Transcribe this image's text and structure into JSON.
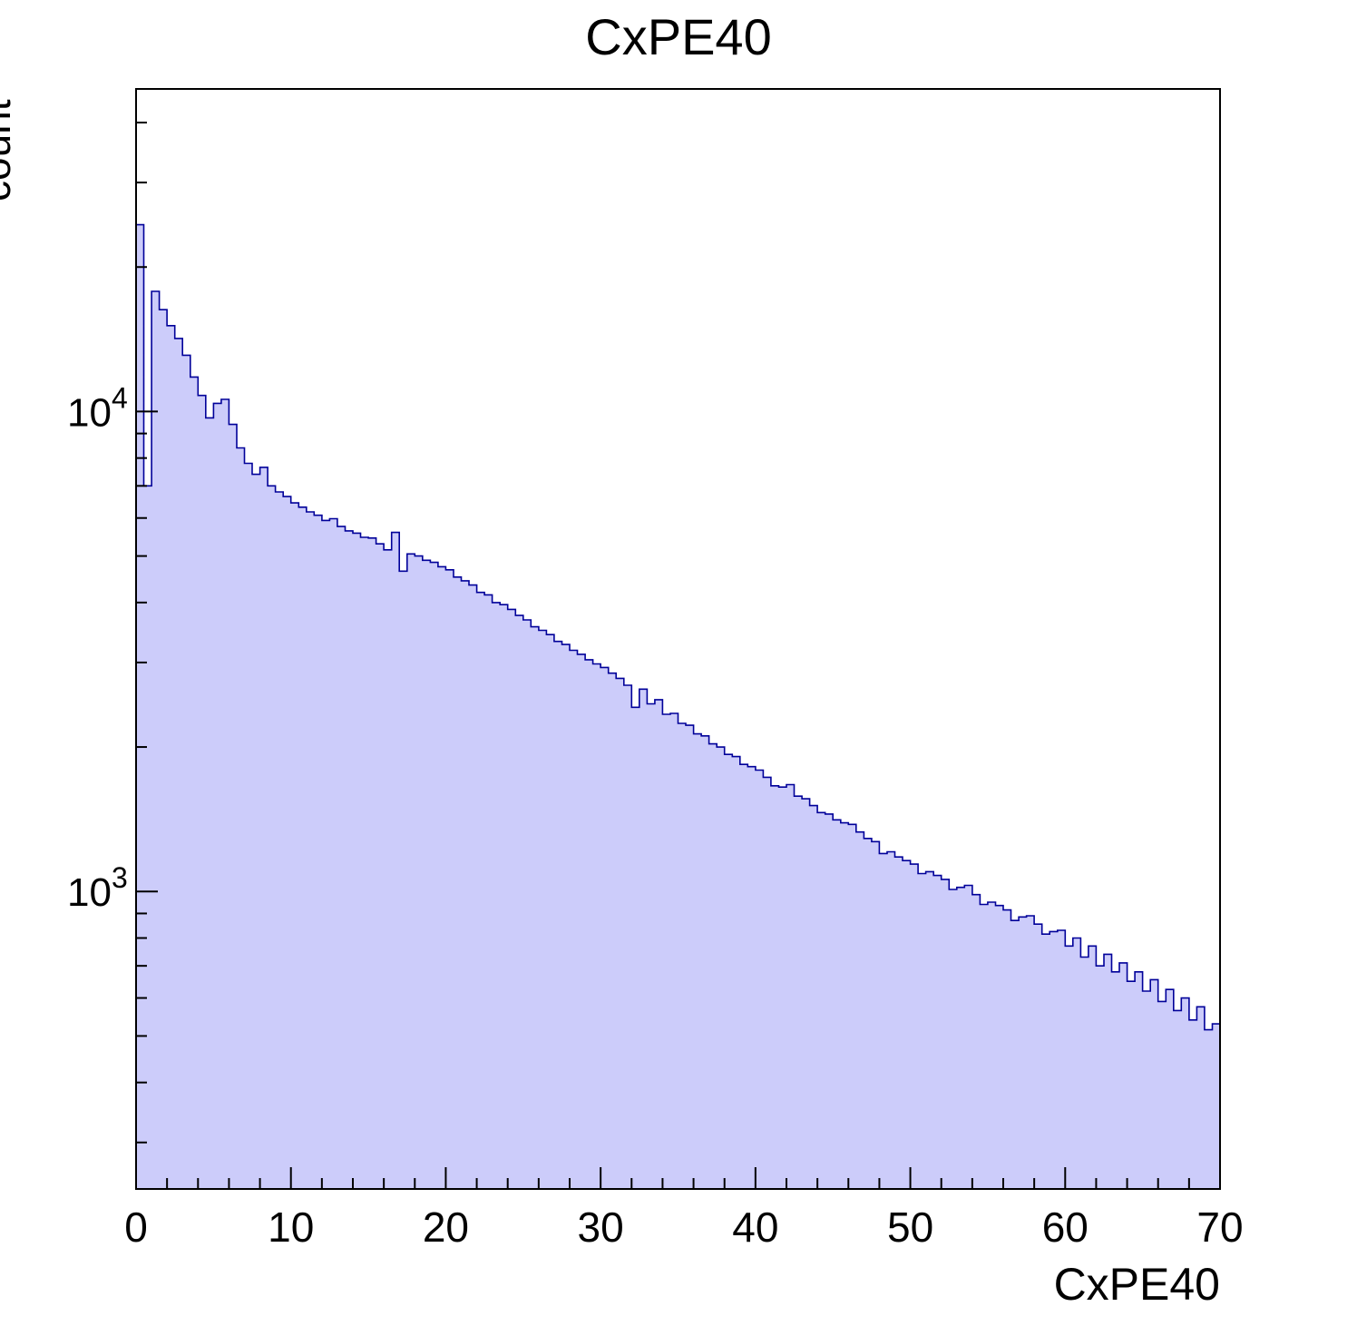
{
  "chart_data": {
    "type": "bar",
    "subtype": "histogram",
    "title": "CxPE40",
    "xlabel": "CxPE40",
    "ylabel": "count",
    "yscale": "log",
    "grid": false,
    "legend": "none",
    "xlim": [
      0,
      70
    ],
    "ylim": [
      240,
      47000
    ],
    "x_start": 0,
    "bin_width": 0.5,
    "xticks": [
      0,
      10,
      20,
      30,
      40,
      50,
      60,
      70
    ],
    "x_minor_step": 2,
    "ytick_exponents": [
      3,
      4
    ],
    "ytick_labels": [
      "10^3",
      "10^4"
    ],
    "fill_color": "#ccccfa",
    "line_color": "#000099",
    "frame_color": "#000000",
    "values": [
      24500,
      7000,
      17800,
      16300,
      15100,
      14200,
      13100,
      11800,
      10800,
      9700,
      10400,
      10600,
      9400,
      8400,
      7800,
      7400,
      7650,
      7000,
      6800,
      6650,
      6450,
      6320,
      6180,
      6080,
      5930,
      5980,
      5760,
      5640,
      5580,
      5470,
      5450,
      5300,
      5150,
      5600,
      4650,
      5050,
      5000,
      4900,
      4850,
      4750,
      4680,
      4520,
      4440,
      4350,
      4200,
      4150,
      4000,
      3960,
      3870,
      3760,
      3680,
      3560,
      3500,
      3430,
      3320,
      3270,
      3180,
      3120,
      3040,
      2980,
      2930,
      2850,
      2780,
      2690,
      2420,
      2640,
      2460,
      2510,
      2340,
      2350,
      2240,
      2220,
      2130,
      2110,
      2030,
      2000,
      1930,
      1910,
      1840,
      1820,
      1790,
      1730,
      1660,
      1650,
      1670,
      1580,
      1560,
      1510,
      1460,
      1450,
      1410,
      1390,
      1380,
      1330,
      1290,
      1270,
      1200,
      1210,
      1180,
      1160,
      1140,
      1090,
      1100,
      1080,
      1060,
      1010,
      1020,
      1030,
      985,
      940,
      950,
      935,
      915,
      870,
      885,
      890,
      855,
      815,
      825,
      830,
      770,
      800,
      730,
      770,
      700,
      740,
      680,
      710,
      650,
      680,
      620,
      655,
      590,
      625,
      565,
      600,
      540,
      575,
      515,
      530
    ]
  }
}
